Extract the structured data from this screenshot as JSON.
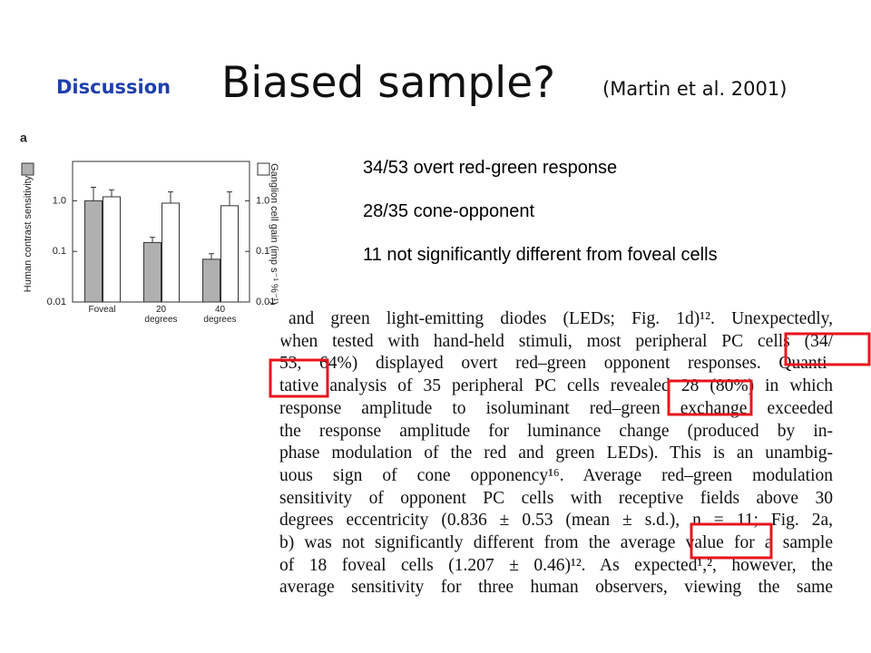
{
  "header": {
    "section": "Discussion",
    "title": "Biased sample?",
    "citation": "(Martin et al. 2001)"
  },
  "bullets": [
    "34/53 overt red-green response",
    "28/35 cone-opponent",
    "11 not significantly different from foveal cells"
  ],
  "excerpt": {
    "lines": [
      "and green light-emitting diodes (LEDs; Fig. 1d)¹². Unexpectedly,",
      "when tested with hand-held stimuli, most peripheral PC cells (34/",
      "53, 64%) displayed overt red–green opponent responses. Quanti-",
      "tative analysis of 35 peripheral PC cells revealed 28 (80%) in which",
      "response amplitude to isoluminant red–green exchange exceeded",
      "the response amplitude for luminance change (produced by in-",
      "phase modulation of the red and green LEDs). This is an unambig-",
      "uous sign of cone opponency¹⁶. Average red–green modulation",
      "sensitivity of opponent PC cells with receptive fields above 30",
      "degrees eccentricity (0.836 ± 0.53 (mean ± s.d.), n = 11; Fig. 2a,",
      "b) was not significantly different from the average value for a sample",
      "of 18 foveal cells (1.207 ± 0.46)¹². As expected¹,², however, the",
      "average sensitivity for three human observers, viewing the same"
    ]
  },
  "chart_data": {
    "type": "bar",
    "panel_label": "a",
    "y_label": "Human contrast sensitivity",
    "y2_label": "Ganglion cell gain (imp s⁻¹ %⁻¹)",
    "categories": [
      "Foveal",
      "20 degrees",
      "40 degrees"
    ],
    "series": [
      {
        "color": "#b0b0b0",
        "values": [
          1.0,
          0.15,
          0.07
        ],
        "errors": [
          0.85,
          0.04,
          0.02
        ]
      },
      {
        "color": "#ffffff",
        "axis": "y2",
        "values": [
          1.2,
          0.9,
          0.8
        ],
        "errors": [
          0.45,
          0.6,
          0.7
        ]
      }
    ],
    "ylim": [
      0.01,
      6
    ],
    "yticks": [
      {
        "value": 1,
        "label": "1.0"
      },
      0.1,
      0.01
    ],
    "y2lim": [
      0.01,
      6
    ],
    "y2ticks": [
      {
        "value": 1,
        "label": "1.0"
      },
      0.1,
      0.01
    ],
    "log_scale": true
  }
}
